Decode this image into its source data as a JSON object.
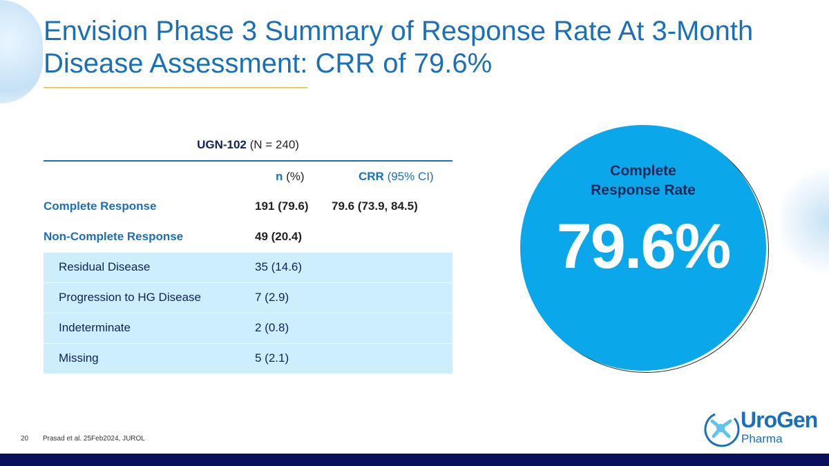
{
  "title": "Envision Phase 3 Summary of Response Rate At 3-Month Disease Assessment: CRR of 79.6%",
  "table": {
    "group_bold": "UGN-102",
    "group_rest": " (N = 240)",
    "col1_bold": "n",
    "col1_rest": " (%)",
    "col2_bold": "CRR",
    "col2_rest": " (95% CI)",
    "rows": [
      {
        "label": "Complete Response",
        "n": "191 (79.6)",
        "crr": "79.6 (73.9, 84.5)"
      },
      {
        "label": "Non-Complete Response",
        "n": "49 (20.4)",
        "crr": ""
      },
      {
        "label": "Residual Disease",
        "n": "35 (14.6)"
      },
      {
        "label": "Progression to HG Disease",
        "n": "7 (2.9)"
      },
      {
        "label": "Indeterminate",
        "n": "2 (0.8)"
      },
      {
        "label": "Missing",
        "n": "5 (2.1)"
      }
    ]
  },
  "callout": {
    "label": "Complete Response Rate",
    "value": "79.6%",
    "color": "#0aa8ea"
  },
  "footer": {
    "page": "20",
    "reference": "Prasad et al. 25Feb2024, JUROL"
  },
  "logo": {
    "name": "UroGen",
    "sub": "Pharma"
  }
}
